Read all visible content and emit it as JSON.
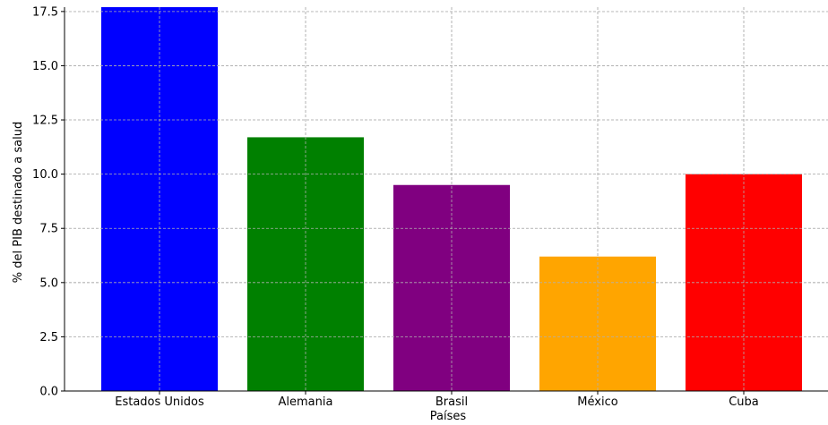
{
  "chart_data": {
    "type": "bar",
    "categories": [
      "Estados Unidos",
      "Alemania",
      "Brasil",
      "México",
      "Cuba"
    ],
    "values": [
      17.7,
      11.7,
      9.5,
      6.2,
      10.0
    ],
    "colors": [
      "#0000ff",
      "#008000",
      "#800080",
      "#ffa500",
      "#ff0000"
    ],
    "title": "",
    "xlabel": "Países",
    "ylabel": "% del PIB destinado a salud",
    "ylim": [
      0,
      17.7
    ],
    "yticks": [
      "0.0",
      "2.5",
      "5.0",
      "7.5",
      "10.0",
      "12.5",
      "15.0",
      "17.5"
    ],
    "grid": true
  }
}
